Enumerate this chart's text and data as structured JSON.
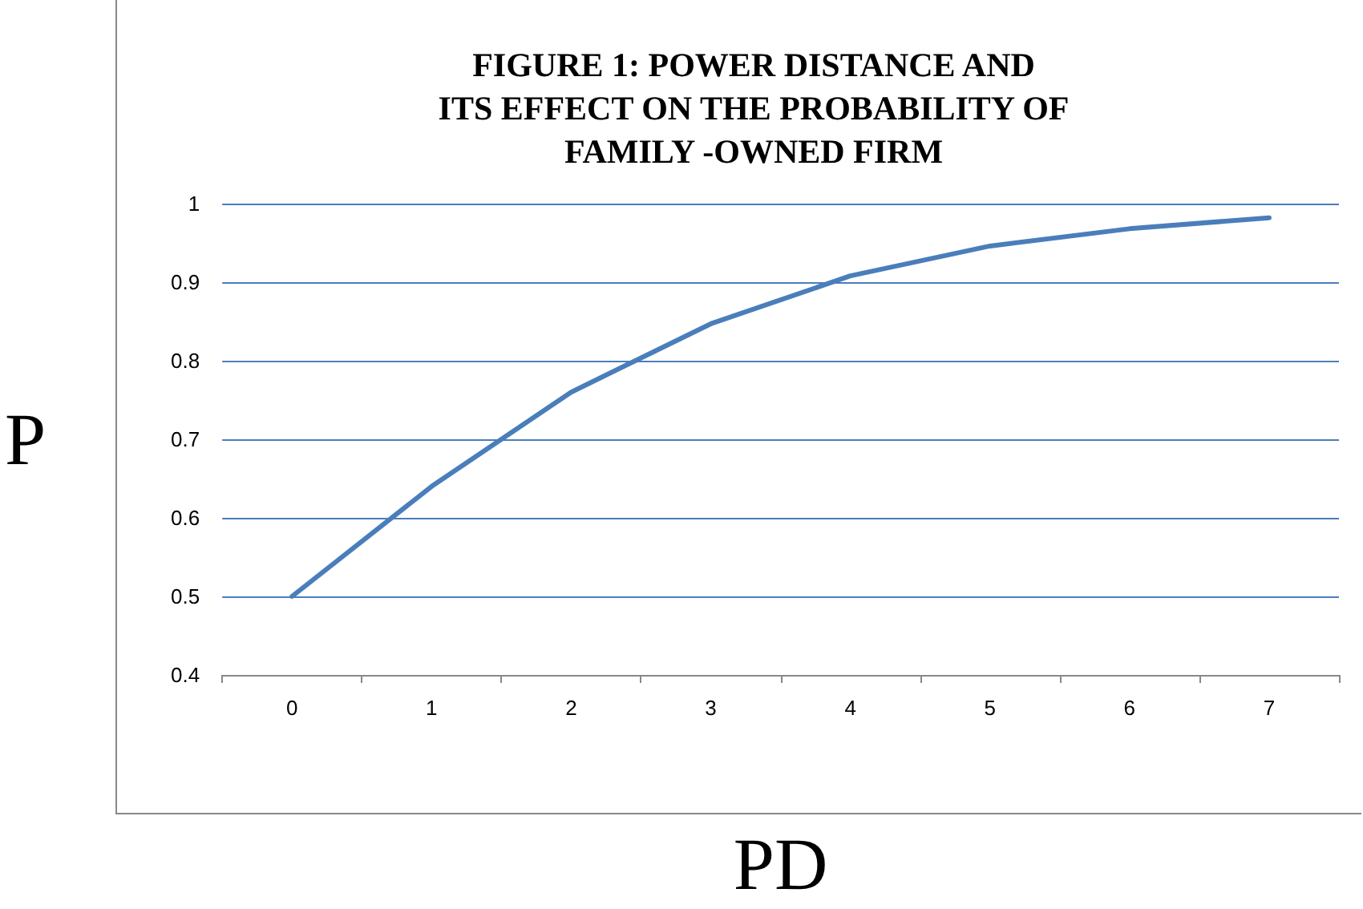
{
  "chart_data": {
    "type": "line",
    "title": "FIGURE 1: POWER DISTANCE AND\nITS EFFECT ON THE PROBABILITY OF\nFAMILY -OWNED FIRM",
    "xlabel": "PD",
    "ylabel": "P",
    "categories": [
      "0",
      "1",
      "2",
      "3",
      "4",
      "5",
      "6",
      "7"
    ],
    "series": [
      {
        "color": "#4a7ebb",
        "values": [
          0.5,
          0.64,
          0.76,
          0.847,
          0.908,
          0.946,
          0.968,
          0.982
        ]
      }
    ],
    "ylim": [
      0.4,
      1
    ],
    "yticks": [
      0.4,
      0.5,
      0.6,
      0.7,
      0.8,
      0.9,
      1
    ],
    "grid": "y",
    "marker": "none",
    "line_style": "solid"
  }
}
